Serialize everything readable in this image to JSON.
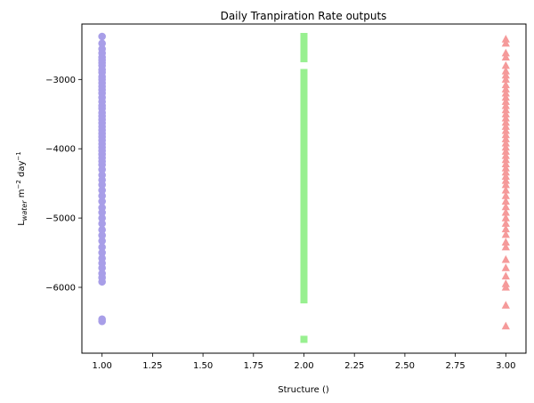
{
  "chart_data": {
    "type": "scatter",
    "title": "Daily Tranpiration Rate outputs",
    "xlabel": "Structure ()",
    "ylabel_main": "L",
    "ylabel_sub": "water",
    "ylabel_rest": " m",
    "ylabel_exp1": "−2",
    "ylabel_rest2": " day",
    "ylabel_exp2": "−1",
    "xlim": [
      0.9,
      3.1
    ],
    "ylim": [
      -6950,
      -2200
    ],
    "xticks": [
      1.0,
      1.25,
      1.5,
      1.75,
      2.0,
      2.25,
      2.5,
      2.75,
      3.0
    ],
    "xtick_labels": [
      "1.00",
      "1.25",
      "1.50",
      "1.75",
      "2.00",
      "2.25",
      "2.50",
      "2.75",
      "3.00"
    ],
    "yticks": [
      -6000,
      -5000,
      -4000,
      -3000
    ],
    "ytick_labels": [
      "−6000",
      "−5000",
      "−4000",
      "−3000"
    ],
    "grid": false,
    "series": [
      {
        "x": 1.0,
        "color": "#a89ee8",
        "marker": "circle",
        "values": [
          -2380,
          -2480,
          -2560,
          -2620,
          -2680,
          -2720,
          -2760,
          -2800,
          -2860,
          -2900,
          -2960,
          -3000,
          -3050,
          -3100,
          -3150,
          -3200,
          -3260,
          -3320,
          -3380,
          -3420,
          -3480,
          -3530,
          -3580,
          -3630,
          -3680,
          -3730,
          -3780,
          -3830,
          -3880,
          -3930,
          -3980,
          -4030,
          -4080,
          -4130,
          -4180,
          -4230,
          -4300,
          -4380,
          -4450,
          -4520,
          -4600,
          -4680,
          -4760,
          -4850,
          -4920,
          -5000,
          -5080,
          -5170,
          -5250,
          -5330,
          -5420,
          -5500,
          -5580,
          -5650,
          -5720,
          -5800,
          -5860,
          -5920,
          -6460,
          -6490
        ]
      },
      {
        "x": 2.0,
        "color": "#98f090",
        "marker": "square",
        "values": [
          -2380,
          -2420,
          -2460,
          -2500,
          -2540,
          -2580,
          -2620,
          -2660,
          -2700,
          -2900,
          -2950,
          -3000,
          -3050,
          -3100,
          -3150,
          -3200,
          -3250,
          -3300,
          -3350,
          -3400,
          -3450,
          -3500,
          -3550,
          -3600,
          -3650,
          -3700,
          -3750,
          -3800,
          -3850,
          -3900,
          -3950,
          -4000,
          -4050,
          -4100,
          -4150,
          -4200,
          -4250,
          -4300,
          -4350,
          -4400,
          -4450,
          -4520,
          -4600,
          -4680,
          -4760,
          -4840,
          -4920,
          -5000,
          -5080,
          -5160,
          -5240,
          -5320,
          -5400,
          -5480,
          -5560,
          -5640,
          -5700,
          -5760,
          -5820,
          -5880,
          -5940,
          -6000,
          -6100,
          -6180,
          -6750
        ]
      },
      {
        "x": 3.0,
        "color": "#f59a9a",
        "marker": "triangle",
        "values": [
          -2420,
          -2480,
          -2620,
          -2680,
          -2800,
          -2880,
          -2940,
          -3000,
          -3080,
          -3140,
          -3200,
          -3260,
          -3320,
          -3380,
          -3440,
          -3500,
          -3560,
          -3620,
          -3680,
          -3740,
          -3800,
          -3860,
          -3920,
          -3980,
          -4040,
          -4100,
          -4160,
          -4220,
          -4280,
          -4340,
          -4400,
          -4460,
          -4520,
          -4600,
          -4680,
          -4760,
          -4840,
          -4920,
          -5000,
          -5080,
          -5160,
          -5240,
          -5350,
          -5420,
          -5600,
          -5720,
          -5840,
          -5950,
          -6000,
          -6260,
          -6560
        ]
      }
    ]
  }
}
